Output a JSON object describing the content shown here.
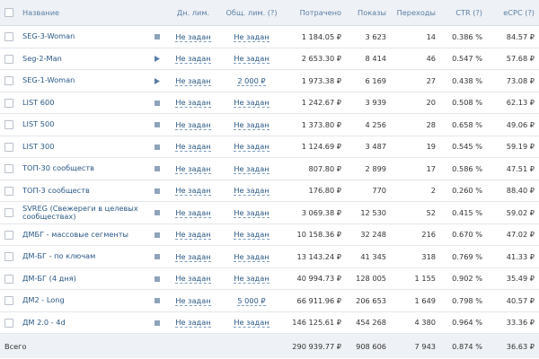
{
  "table": {
    "columns": [
      "Название",
      "Дн. лим.",
      "Общ. лим. (?)",
      "Потрачено",
      "Показы",
      "Переходы",
      "CTR (?)",
      "eCPC (?)"
    ],
    "rows": [
      [
        "SEG-3-Woman",
        "Не задан",
        "Не задан",
        "1 184.05 ₽",
        "3 623",
        "14",
        "0.386 %",
        "84.57 ₽"
      ],
      [
        "Seg-2-Man",
        "Не задан",
        "Не задан",
        "2 653.30 ₽",
        "8 414",
        "46",
        "0.547 %",
        "57.68 ₽"
      ],
      [
        "SEG-1-Woman",
        "Не задан",
        "2 000 ₽",
        "1 973.38 ₽",
        "6 169",
        "27",
        "0.438 %",
        "73.08 ₽"
      ],
      [
        "LIST 600",
        "Не задан",
        "Не задан",
        "1 242.67 ₽",
        "3 939",
        "20",
        "0.508 %",
        "62.13 ₽"
      ],
      [
        "LIST 500",
        "Не задан",
        "Не задан",
        "1 373.80 ₽",
        "4 256",
        "28",
        "0.658 %",
        "49.06 ₽"
      ],
      [
        "LIST 300",
        "Не задан",
        "Не задан",
        "1 124.69 ₽",
        "3 487",
        "19",
        "0.545 %",
        "59.19 ₽"
      ],
      [
        "ТОП-30 сообществ",
        "Не задан",
        "Не задан",
        "807.80 ₽",
        "2 899",
        "17",
        "0.586 %",
        "47.51 ₽"
      ],
      [
        "ТОП-3 сообществ",
        "Не задан",
        "Не задан",
        "176.80 ₽",
        "770",
        "2",
        "0.260 %",
        "88.40 ₽"
      ],
      [
        "SVREG (Свежереги в целевых сообществах)",
        "Не задан",
        "Не задан",
        "3 069.38 ₽",
        "12 530",
        "52",
        "0.415 %",
        "59.02 ₽"
      ],
      [
        "ДМБГ - массовые сегменты",
        "Не задан",
        "Не задан",
        "10 158.36 ₽",
        "32 248",
        "216",
        "0.670 %",
        "47.02 ₽"
      ],
      [
        "ДМ-БГ - по ключам",
        "Не задан",
        "Не задан",
        "13 143.24 ₽",
        "41 345",
        "318",
        "0.769 %",
        "41.33 ₽"
      ],
      [
        "ДМ-БГ (4 дня)",
        "Не задан",
        "Не задан",
        "40 994.73 ₽",
        "128 005",
        "1 155",
        "0.902 %",
        "35.49 ₽"
      ],
      [
        "ДМ2 - Long",
        "Не задан",
        "5 000 ₽",
        "66 911.96 ₽",
        "206 653",
        "1 649",
        "0.798 %",
        "40.57 ₽"
      ],
      [
        "ДМ 2.0 - 4d",
        "Не задан",
        "Не задан",
        "146 125.61 ₽",
        "454 268",
        "4 380",
        "0.964 %",
        "33.36 ₽"
      ]
    ],
    "total": [
      "Всего",
      "290 939.77 ₽",
      "908 606",
      "7 943",
      "0.874 %",
      "36.63 ₽"
    ]
  }
}
